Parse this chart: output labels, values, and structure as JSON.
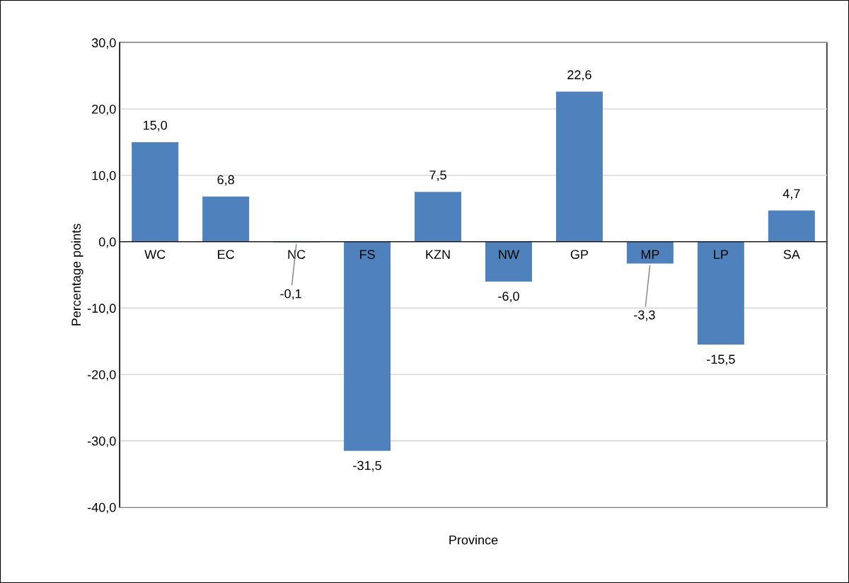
{
  "chart_data": {
    "type": "bar",
    "xlabel": "Province",
    "ylabel": "Percentage points",
    "categories": [
      "WC",
      "EC",
      "NC",
      "FS",
      "KZN",
      "NW",
      "GP",
      "MP",
      "LP",
      "SA"
    ],
    "values": [
      15.0,
      6.8,
      -0.1,
      -31.5,
      7.5,
      -6.0,
      22.6,
      -3.3,
      -15.5,
      4.7
    ],
    "value_labels": [
      "15,0",
      "6,8",
      "-0,1",
      "-31,5",
      "7,5",
      "-6,0",
      "22,6",
      "-3,3",
      "-15,5",
      "4,7"
    ],
    "color": "#4f81bd",
    "ylim": [
      -40,
      30
    ],
    "yticks": [
      {
        "value": -40,
        "label": "-40,0"
      },
      {
        "value": -30,
        "label": "-30,0"
      },
      {
        "value": -20,
        "label": "-20,0"
      },
      {
        "value": -10,
        "label": "-10,0"
      },
      {
        "value": 0,
        "label": "0,0"
      },
      {
        "value": 10,
        "label": "10,0"
      },
      {
        "value": 20,
        "label": "20,0"
      },
      {
        "value": 30,
        "label": "30,0"
      }
    ],
    "grid": "y",
    "legend": false
  }
}
